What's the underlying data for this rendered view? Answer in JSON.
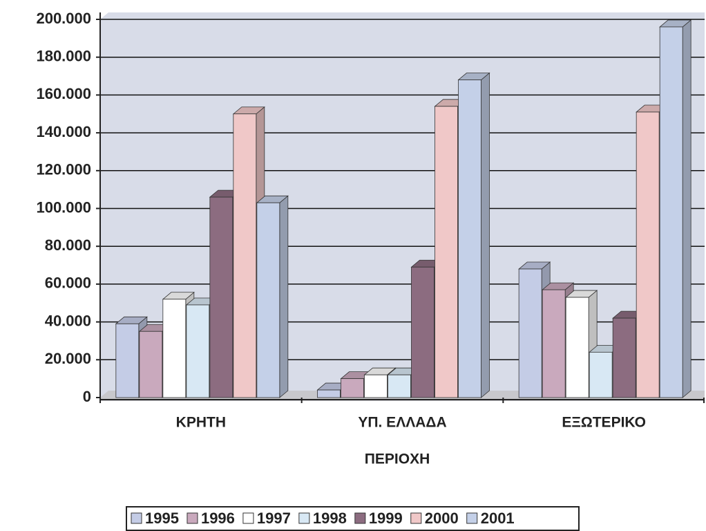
{
  "chart_data": {
    "type": "bar3d",
    "x_label": "ΠΕΡΙΟΧΗ",
    "categories": [
      "ΚΡΗΤΗ",
      "ΥΠ. ΕΛΛΑΔΑ",
      "ΕΞΩΤΕΡΙΚΟ"
    ],
    "series": [
      {
        "name": "1995",
        "color": "#c4cce6",
        "values": [
          39000,
          4000,
          68000
        ]
      },
      {
        "name": "1996",
        "color": "#c9a9bd",
        "values": [
          35000,
          10000,
          57000
        ]
      },
      {
        "name": "1997",
        "color": "#ffffff",
        "values": [
          52000,
          12000,
          53000
        ]
      },
      {
        "name": "1998",
        "color": "#d8e8f4",
        "values": [
          49000,
          12000,
          24000
        ]
      },
      {
        "name": "1999",
        "color": "#8c6c80",
        "values": [
          106000,
          69000,
          42000
        ]
      },
      {
        "name": "2000",
        "color": "#f0c8c8",
        "values": [
          150000,
          154000,
          151000
        ]
      },
      {
        "name": "2001",
        "color": "#c4d0e8",
        "values": [
          103000,
          168000,
          196000
        ]
      }
    ],
    "ylim": [
      0,
      200000
    ],
    "yticks": [
      {
        "value": 0,
        "label": "0"
      },
      {
        "value": 20000,
        "label": "20.000"
      },
      {
        "value": 40000,
        "label": "40.000"
      },
      {
        "value": 60000,
        "label": "60.000"
      },
      {
        "value": 80000,
        "label": "80.000"
      },
      {
        "value": 100000,
        "label": "100.000"
      },
      {
        "value": 120000,
        "label": "120.000"
      },
      {
        "value": 140000,
        "label": "140.000"
      },
      {
        "value": 160000,
        "label": "160.000"
      },
      {
        "value": 180000,
        "label": "180.000"
      },
      {
        "value": 200000,
        "label": "200.000"
      }
    ],
    "grid": true,
    "legend": "bottom"
  }
}
